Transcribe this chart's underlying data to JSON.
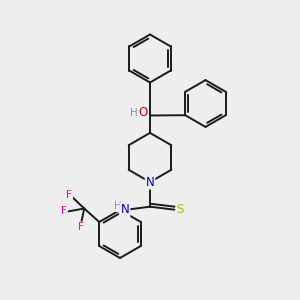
{
  "background_color": "#eeeeee",
  "figsize": [
    3.0,
    3.0
  ],
  "dpi": 100,
  "bond_color": "#1a1a1a",
  "bond_width": 1.4,
  "atom_colors": {
    "N": "#0000dd",
    "O": "#dd0000",
    "S": "#bbbb00",
    "F": "#ee00ee",
    "H_label": "#7799aa",
    "C": "#1a1a1a"
  },
  "font_size_atom": 8.5
}
